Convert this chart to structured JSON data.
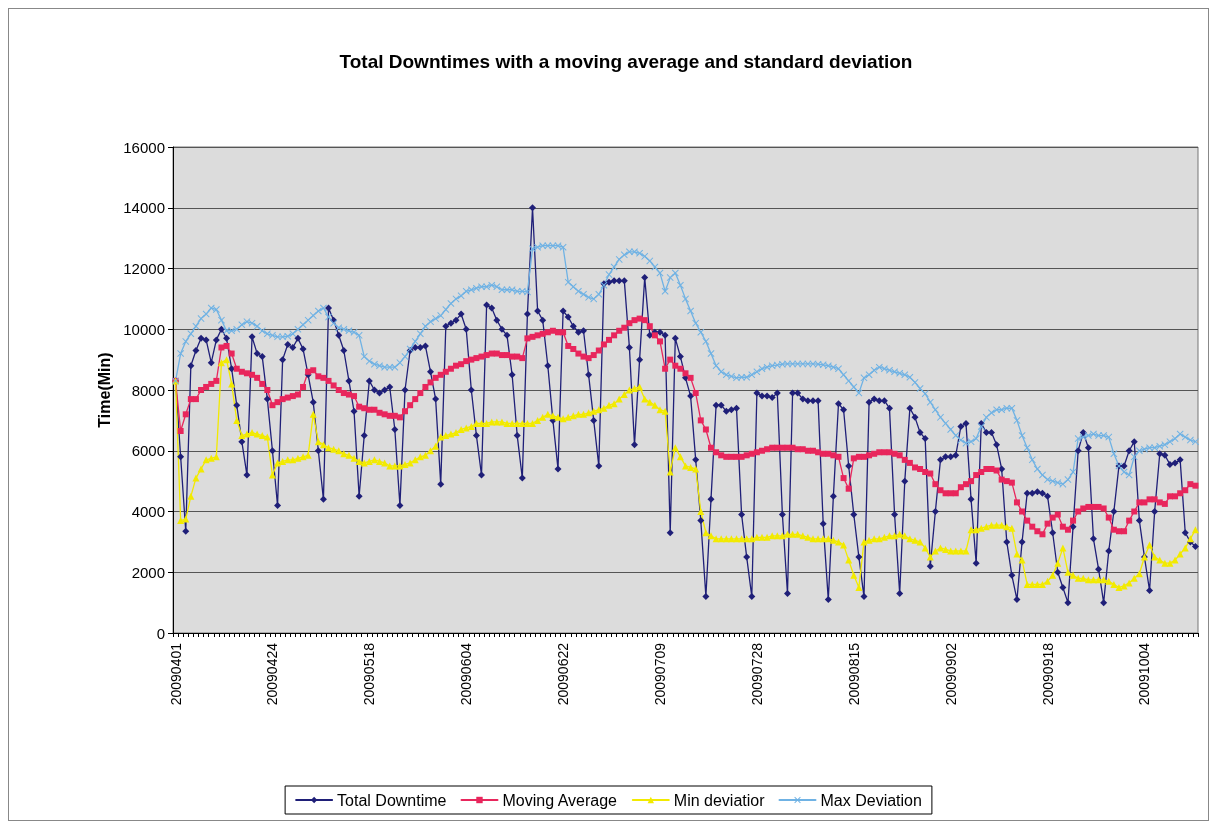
{
  "chart_data": {
    "type": "line",
    "title": "Total Downtimes with a moving average and standard deviation",
    "ylabel": "Time(Min)",
    "categories": [
      "20090401",
      null,
      null,
      null,
      null,
      null,
      null,
      null,
      null,
      null,
      null,
      null,
      null,
      null,
      null,
      null,
      null,
      null,
      null,
      "20090424",
      null,
      null,
      null,
      null,
      null,
      null,
      null,
      null,
      null,
      null,
      null,
      null,
      null,
      null,
      null,
      null,
      null,
      null,
      "20090518",
      null,
      null,
      null,
      null,
      null,
      null,
      null,
      null,
      null,
      null,
      null,
      null,
      null,
      null,
      null,
      null,
      null,
      null,
      "20090604",
      null,
      null,
      null,
      null,
      null,
      null,
      null,
      null,
      null,
      null,
      null,
      null,
      null,
      null,
      null,
      null,
      null,
      null,
      "20090622",
      null,
      null,
      null,
      null,
      null,
      null,
      null,
      null,
      null,
      null,
      null,
      null,
      null,
      null,
      null,
      null,
      null,
      null,
      "20090709",
      null,
      null,
      null,
      null,
      null,
      null,
      null,
      null,
      null,
      null,
      null,
      null,
      null,
      null,
      null,
      null,
      null,
      null,
      "20090728",
      null,
      null,
      null,
      null,
      null,
      null,
      null,
      null,
      null,
      null,
      null,
      null,
      null,
      null,
      null,
      null,
      null,
      null,
      "20090815",
      null,
      null,
      null,
      null,
      null,
      null,
      null,
      null,
      null,
      null,
      null,
      null,
      null,
      null,
      null,
      null,
      null,
      null,
      "20090902",
      null,
      null,
      null,
      null,
      null,
      null,
      null,
      null,
      null,
      null,
      null,
      null,
      null,
      null,
      null,
      null,
      null,
      null,
      "20090918",
      null,
      null,
      null,
      null,
      null,
      null,
      null,
      null,
      null,
      null,
      null,
      null,
      null,
      null,
      null,
      null,
      null,
      null,
      "20091004",
      null,
      null,
      null,
      null,
      null,
      null,
      null,
      null,
      null,
      null
    ],
    "series": [
      {
        "name": "Total Downtime",
        "color": "#1f1f78",
        "marker": "diamond",
        "values": [
          8300,
          5800,
          3350,
          8800,
          9300,
          9700,
          9650,
          8900,
          9650,
          10000,
          9700,
          8700,
          7500,
          6300,
          5200,
          9750,
          9200,
          9100,
          7700,
          6000,
          4200,
          9000,
          9500,
          9400,
          9700,
          9350,
          8500,
          7600,
          6000,
          4400,
          10700,
          10300,
          9800,
          9300,
          8300,
          7300,
          4500,
          6500,
          8300,
          8000,
          7900,
          8000,
          8100,
          6700,
          4200,
          8000,
          9300,
          9400,
          9400,
          9450,
          8600,
          7700,
          4900,
          10100,
          10200,
          10300,
          10500,
          10000,
          8000,
          6500,
          5200,
          10800,
          10700,
          10300,
          10000,
          9800,
          8500,
          6500,
          5100,
          10500,
          14000,
          10600,
          10300,
          8800,
          7000,
          5400,
          10600,
          10400,
          10100,
          9900,
          9950,
          8500,
          7000,
          5500,
          11500,
          11550,
          11600,
          11600,
          11600,
          9400,
          6200,
          9000,
          11700,
          9800,
          9900,
          9900,
          9800,
          3300,
          9700,
          9100,
          8400,
          7800,
          5700,
          3700,
          1200,
          4400,
          7500,
          7500,
          7300,
          7350,
          7400,
          3900,
          2500,
          1200,
          7900,
          7800,
          7800,
          7750,
          7900,
          3900,
          1300,
          7900,
          7900,
          7700,
          7650,
          7650,
          7650,
          3600,
          1100,
          4500,
          7550,
          7350,
          5500,
          3900,
          2500,
          1200,
          7600,
          7700,
          7650,
          7650,
          7400,
          3900,
          1300,
          5000,
          7400,
          7100,
          6600,
          6400,
          2200,
          4000,
          5700,
          5800,
          5800,
          5850,
          6800,
          6900,
          4400,
          2300,
          6900,
          6600,
          6600,
          6200,
          5400,
          3000,
          1900,
          1100,
          3000,
          4600,
          4600,
          4650,
          4600,
          4500,
          3300,
          2000,
          1500,
          1000,
          3500,
          6000,
          6600,
          6100,
          3100,
          2100,
          1000,
          2700,
          4000,
          5500,
          5500,
          6000,
          6300,
          3700,
          2500,
          1400,
          4000,
          5900,
          5850,
          5550,
          5600,
          5700,
          3300,
          3000,
          2850
        ]
      },
      {
        "name": "Moving Average",
        "color": "#e8265c",
        "marker": "square",
        "values": [
          8300,
          6650,
          7200,
          7700,
          7700,
          8000,
          8100,
          8200,
          8300,
          9400,
          9450,
          9200,
          8700,
          8600,
          8550,
          8500,
          8400,
          8200,
          8000,
          7500,
          7600,
          7700,
          7750,
          7800,
          7850,
          8100,
          8600,
          8650,
          8450,
          8400,
          8300,
          8150,
          8000,
          7900,
          7850,
          7800,
          7450,
          7400,
          7350,
          7350,
          7250,
          7200,
          7150,
          7150,
          7100,
          7300,
          7500,
          7700,
          7900,
          8100,
          8250,
          8400,
          8500,
          8600,
          8700,
          8800,
          8850,
          8950,
          9000,
          9050,
          9100,
          9150,
          9200,
          9200,
          9150,
          9150,
          9100,
          9100,
          9050,
          9700,
          9750,
          9800,
          9850,
          9900,
          9950,
          9900,
          9900,
          9450,
          9350,
          9200,
          9100,
          9050,
          9150,
          9300,
          9500,
          9650,
          9800,
          9950,
          10050,
          10200,
          10300,
          10350,
          10300,
          10100,
          9800,
          9600,
          8700,
          9000,
          8800,
          8700,
          8550,
          8400,
          7900,
          7000,
          6700,
          6100,
          5950,
          5850,
          5800,
          5800,
          5800,
          5800,
          5850,
          5900,
          5950,
          6000,
          6050,
          6100,
          6100,
          6100,
          6100,
          6100,
          6050,
          6050,
          6000,
          6000,
          5950,
          5900,
          5900,
          5850,
          5800,
          5100,
          4750,
          5750,
          5800,
          5800,
          5850,
          5900,
          5950,
          5950,
          5950,
          5900,
          5850,
          5700,
          5600,
          5450,
          5400,
          5300,
          5250,
          4900,
          4700,
          4600,
          4600,
          4600,
          4800,
          4900,
          5000,
          5200,
          5300,
          5400,
          5400,
          5350,
          5050,
          5000,
          4950,
          4300,
          4000,
          3700,
          3500,
          3350,
          3250,
          3600,
          3800,
          3900,
          3500,
          3400,
          3700,
          4000,
          4100,
          4150,
          4150,
          4150,
          4100,
          3800,
          3400,
          3350,
          3350,
          3700,
          4000,
          4300,
          4300,
          4400,
          4400,
          4300,
          4250,
          4500,
          4500,
          4600,
          4700,
          4900,
          4850
        ]
      },
      {
        "name": "Min deviatior",
        "color": "#f2ea00",
        "marker": "triangle",
        "values": [
          8300,
          3700,
          3750,
          4500,
          5100,
          5400,
          5700,
          5750,
          5800,
          8900,
          9000,
          8200,
          7000,
          6500,
          6550,
          6600,
          6550,
          6500,
          6450,
          5200,
          5600,
          5650,
          5700,
          5700,
          5750,
          5800,
          5850,
          7200,
          6300,
          6200,
          6100,
          6050,
          6000,
          5900,
          5850,
          5750,
          5650,
          5600,
          5650,
          5700,
          5650,
          5600,
          5500,
          5500,
          5500,
          5550,
          5600,
          5700,
          5800,
          5850,
          6000,
          6150,
          6450,
          6500,
          6550,
          6600,
          6700,
          6750,
          6800,
          6900,
          6900,
          6900,
          6950,
          6950,
          6950,
          6900,
          6900,
          6900,
          6900,
          6900,
          6900,
          7000,
          7100,
          7200,
          7150,
          7100,
          7050,
          7100,
          7150,
          7200,
          7200,
          7250,
          7300,
          7350,
          7400,
          7500,
          7550,
          7700,
          7850,
          8000,
          8050,
          8100,
          7700,
          7600,
          7500,
          7350,
          7300,
          5300,
          6100,
          5800,
          5500,
          5450,
          5400,
          4000,
          3300,
          3200,
          3100,
          3100,
          3100,
          3100,
          3100,
          3100,
          3100,
          3100,
          3150,
          3150,
          3150,
          3200,
          3200,
          3200,
          3250,
          3250,
          3250,
          3200,
          3150,
          3100,
          3100,
          3100,
          3100,
          3050,
          3000,
          2900,
          2400,
          1900,
          1500,
          3000,
          3050,
          3100,
          3100,
          3150,
          3200,
          3200,
          3250,
          3200,
          3100,
          3050,
          3000,
          2800,
          2500,
          2700,
          2800,
          2750,
          2700,
          2700,
          2700,
          2700,
          3400,
          3400,
          3450,
          3500,
          3550,
          3550,
          3550,
          3500,
          3450,
          2600,
          2400,
          1600,
          1600,
          1600,
          1600,
          1700,
          1900,
          2300,
          2800,
          2000,
          1900,
          1800,
          1800,
          1750,
          1750,
          1750,
          1750,
          1700,
          1600,
          1500,
          1550,
          1650,
          1800,
          1950,
          2500,
          2900,
          2500,
          2400,
          2300,
          2300,
          2400,
          2600,
          2800,
          3100,
          3400
        ]
      },
      {
        "name": "Max Deviation",
        "color": "#6fb2e4",
        "marker": "cross",
        "values": [
          8300,
          9200,
          9600,
          9850,
          10100,
          10350,
          10500,
          10700,
          10650,
          10300,
          9950,
          9950,
          10000,
          10150,
          10250,
          10200,
          10100,
          9950,
          9850,
          9800,
          9750,
          9750,
          9770,
          9850,
          10000,
          10150,
          10300,
          10450,
          10600,
          10700,
          10400,
          10200,
          10050,
          10000,
          9950,
          9900,
          9800,
          9100,
          8950,
          8850,
          8800,
          8750,
          8750,
          8750,
          8900,
          9100,
          9350,
          9600,
          9850,
          10100,
          10250,
          10350,
          10450,
          10650,
          10850,
          11000,
          11100,
          11250,
          11300,
          11350,
          11400,
          11400,
          11450,
          11400,
          11300,
          11300,
          11300,
          11250,
          11250,
          11230,
          12650,
          12700,
          12750,
          12750,
          12750,
          12750,
          12700,
          11550,
          11400,
          11250,
          11150,
          11050,
          11000,
          11150,
          11450,
          11800,
          12050,
          12300,
          12450,
          12550,
          12550,
          12500,
          12400,
          12250,
          12050,
          11850,
          11250,
          11700,
          11850,
          11450,
          11000,
          10600,
          10200,
          9900,
          9600,
          9200,
          8800,
          8600,
          8500,
          8450,
          8400,
          8420,
          8420,
          8500,
          8600,
          8700,
          8750,
          8800,
          8820,
          8850,
          8860,
          8860,
          8860,
          8860,
          8860,
          8860,
          8850,
          8830,
          8800,
          8750,
          8700,
          8500,
          8300,
          8100,
          7900,
          8400,
          8500,
          8650,
          8750,
          8700,
          8650,
          8600,
          8550,
          8500,
          8420,
          8250,
          8050,
          7880,
          7600,
          7350,
          7100,
          6900,
          6700,
          6500,
          6350,
          6250,
          6300,
          6400,
          6800,
          7100,
          7250,
          7350,
          7350,
          7400,
          7400,
          7000,
          6500,
          6100,
          5700,
          5400,
          5200,
          5050,
          5000,
          4950,
          4900,
          5050,
          5300,
          6400,
          6450,
          6500,
          6550,
          6500,
          6500,
          6450,
          5900,
          5500,
          5300,
          5200,
          5800,
          6000,
          6050,
          6100,
          6100,
          6150,
          6200,
          6300,
          6400,
          6550,
          6450,
          6350,
          6300
        ]
      }
    ],
    "ylim": [
      0,
      16000
    ],
    "yticks": [
      0,
      2000,
      4000,
      6000,
      8000,
      10000,
      12000,
      14000,
      16000
    ],
    "grid": "y",
    "legend": "bottom",
    "line_style": "solid"
  }
}
